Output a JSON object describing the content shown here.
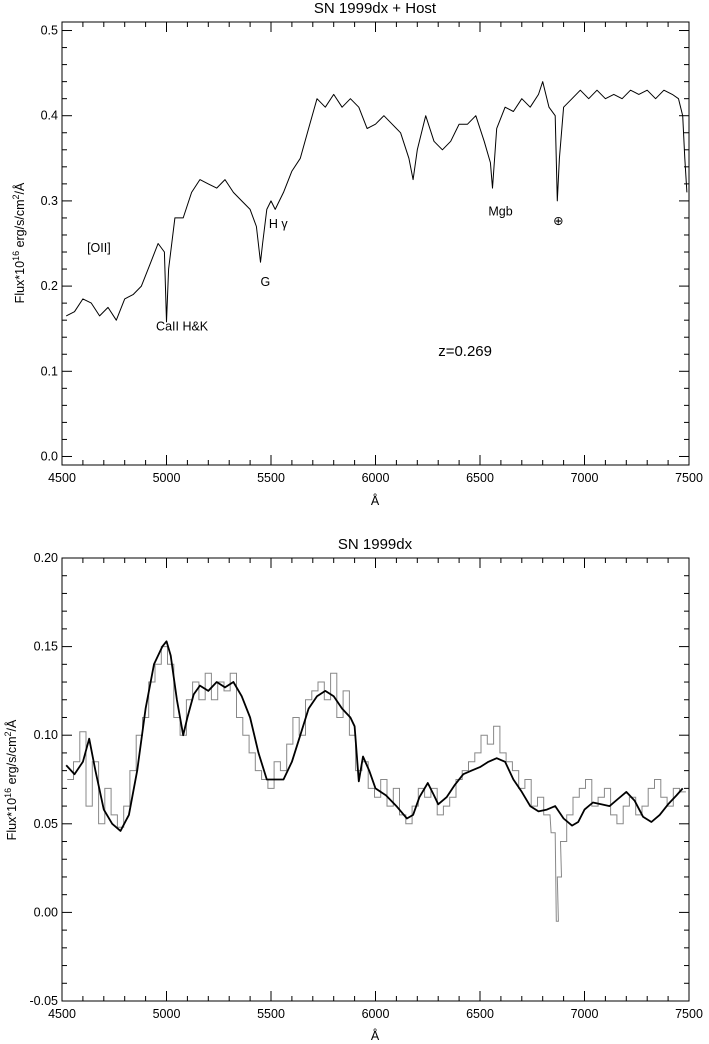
{
  "chart_data": [
    {
      "type": "line",
      "title": "SN 1999dx + Host",
      "xlabel": "Å",
      "ylabel": "Flux*10",
      "ylabel_sup": "16",
      "ylabel_tail": " erg/s/cm",
      "ylabel_sup2": "2",
      "ylabel_end": "/Å",
      "xlim": [
        4500,
        7500
      ],
      "ylim": [
        -0.01,
        0.51
      ],
      "xticks": [
        4500,
        5000,
        5500,
        6000,
        6500,
        7000,
        7500
      ],
      "xtick_labels": [
        "4500",
        "5000",
        "5500",
        "6000",
        "6500",
        "7000",
        "7500"
      ],
      "yticks": [
        0.0,
        0.1,
        0.2,
        0.3,
        0.4,
        0.5
      ],
      "ytick_labels": [
        "0.0",
        "0.1",
        "0.2",
        "0.3",
        "0.4",
        "0.5"
      ],
      "annotations": [
        {
          "text": "[OII]",
          "x": 4620,
          "y": 0.24
        },
        {
          "text": "CaII H&K",
          "x": 4950,
          "y": 0.148
        },
        {
          "text": "G",
          "x": 5450,
          "y": 0.2
        },
        {
          "text": "H γ",
          "x": 5490,
          "y": 0.268
        },
        {
          "text": "Mgb",
          "x": 6540,
          "y": 0.283
        },
        {
          "text": "⊕",
          "x": 6850,
          "y": 0.272
        },
        {
          "text": "z=0.269",
          "x": 6300,
          "y": 0.118
        }
      ],
      "series": [
        {
          "x": [
            4520,
            4560,
            4600,
            4640,
            4680,
            4720,
            4760,
            4800,
            4840,
            4880,
            4920,
            4960,
            4990,
            5000,
            5010,
            5040,
            5080,
            5120,
            5160,
            5200,
            5240,
            5280,
            5320,
            5360,
            5400,
            5430,
            5450,
            5460,
            5480,
            5500,
            5520,
            5560,
            5600,
            5640,
            5680,
            5720,
            5760,
            5800,
            5840,
            5880,
            5920,
            5960,
            6000,
            6040,
            6080,
            6120,
            6160,
            6180,
            6200,
            6240,
            6280,
            6320,
            6360,
            6400,
            6440,
            6480,
            6520,
            6550,
            6560,
            6580,
            6620,
            6660,
            6700,
            6740,
            6780,
            6800,
            6830,
            6860,
            6870,
            6880,
            6900,
            6940,
            6980,
            7020,
            7060,
            7100,
            7140,
            7180,
            7220,
            7260,
            7300,
            7340,
            7380,
            7420,
            7450,
            7470,
            7480,
            7490
          ],
          "y": [
            0.165,
            0.17,
            0.185,
            0.18,
            0.165,
            0.175,
            0.16,
            0.185,
            0.19,
            0.2,
            0.225,
            0.25,
            0.24,
            0.158,
            0.22,
            0.28,
            0.28,
            0.31,
            0.325,
            0.32,
            0.315,
            0.325,
            0.31,
            0.3,
            0.29,
            0.27,
            0.228,
            0.25,
            0.29,
            0.3,
            0.29,
            0.31,
            0.335,
            0.35,
            0.385,
            0.42,
            0.41,
            0.425,
            0.41,
            0.42,
            0.41,
            0.385,
            0.39,
            0.4,
            0.39,
            0.38,
            0.35,
            0.325,
            0.36,
            0.4,
            0.37,
            0.36,
            0.37,
            0.39,
            0.39,
            0.4,
            0.37,
            0.345,
            0.315,
            0.385,
            0.41,
            0.405,
            0.42,
            0.41,
            0.425,
            0.44,
            0.41,
            0.4,
            0.3,
            0.35,
            0.41,
            0.42,
            0.43,
            0.42,
            0.43,
            0.42,
            0.425,
            0.42,
            0.43,
            0.425,
            0.43,
            0.42,
            0.43,
            0.425,
            0.42,
            0.4,
            0.35,
            0.31
          ]
        }
      ]
    },
    {
      "type": "line",
      "title": "SN 1999dx",
      "xlabel": "Å",
      "ylabel": "Flux*10",
      "ylabel_sup": "16",
      "ylabel_tail": " erg/s/cm",
      "ylabel_sup2": "2",
      "ylabel_end": "/Å",
      "xlim": [
        4500,
        7500
      ],
      "ylim": [
        -0.05,
        0.2
      ],
      "xticks": [
        4500,
        5000,
        5500,
        6000,
        6500,
        7000,
        7500
      ],
      "xtick_labels": [
        "4500",
        "5000",
        "5500",
        "6000",
        "6500",
        "7000",
        "7500"
      ],
      "yticks": [
        -0.05,
        0.0,
        0.05,
        0.1,
        0.15,
        0.2
      ],
      "ytick_labels": [
        "-0.05",
        "0.00",
        "0.05",
        "0.10",
        "0.15",
        "0.20"
      ],
      "series": [
        {
          "style": "histogram",
          "color": "#888888",
          "x": [
            4540,
            4570,
            4600,
            4630,
            4660,
            4690,
            4720,
            4750,
            4780,
            4810,
            4840,
            4870,
            4900,
            4930,
            4960,
            4990,
            5020,
            5050,
            5080,
            5110,
            5140,
            5170,
            5200,
            5230,
            5260,
            5290,
            5320,
            5350,
            5380,
            5410,
            5440,
            5470,
            5500,
            5530,
            5560,
            5590,
            5620,
            5650,
            5680,
            5710,
            5740,
            5770,
            5800,
            5830,
            5860,
            5890,
            5920,
            5950,
            5980,
            6010,
            6040,
            6070,
            6100,
            6130,
            6160,
            6190,
            6220,
            6250,
            6280,
            6310,
            6340,
            6370,
            6400,
            6430,
            6460,
            6490,
            6520,
            6550,
            6580,
            6610,
            6640,
            6670,
            6700,
            6730,
            6760,
            6790,
            6820,
            6850,
            6870,
            6880,
            6900,
            6930,
            6960,
            6990,
            7020,
            7050,
            7080,
            7110,
            7140,
            7170,
            7200,
            7230,
            7260,
            7290,
            7320,
            7350,
            7380,
            7410,
            7440,
            7470
          ],
          "y": [
            0.075,
            0.085,
            0.102,
            0.06,
            0.085,
            0.05,
            0.07,
            0.055,
            0.048,
            0.06,
            0.08,
            0.1,
            0.11,
            0.13,
            0.14,
            0.15,
            0.14,
            0.11,
            0.1,
            0.12,
            0.13,
            0.12,
            0.135,
            0.12,
            0.13,
            0.125,
            0.135,
            0.11,
            0.1,
            0.09,
            0.08,
            0.075,
            0.07,
            0.085,
            0.08,
            0.095,
            0.11,
            0.1,
            0.12,
            0.125,
            0.13,
            0.12,
            0.135,
            0.11,
            0.125,
            0.1,
            0.08,
            0.085,
            0.07,
            0.065,
            0.075,
            0.06,
            0.07,
            0.055,
            0.05,
            0.06,
            0.07,
            0.065,
            0.07,
            0.055,
            0.06,
            0.065,
            0.075,
            0.08,
            0.085,
            0.09,
            0.1,
            0.095,
            0.105,
            0.09,
            0.085,
            0.08,
            0.07,
            0.075,
            0.06,
            0.065,
            0.055,
            0.045,
            -0.005,
            0.02,
            0.04,
            0.055,
            0.065,
            0.07,
            0.075,
            0.06,
            0.065,
            0.07,
            0.055,
            0.05,
            0.06,
            0.065,
            0.055,
            0.06,
            0.07,
            0.075,
            0.065,
            0.06,
            0.07,
            0.068
          ]
        },
        {
          "style": "line",
          "color": "#000000",
          "x": [
            4520,
            4560,
            4600,
            4630,
            4660,
            4700,
            4740,
            4780,
            4820,
            4860,
            4900,
            4940,
            4980,
            5000,
            5020,
            5050,
            5080,
            5100,
            5130,
            5160,
            5200,
            5240,
            5280,
            5320,
            5360,
            5400,
            5440,
            5480,
            5520,
            5560,
            5600,
            5640,
            5680,
            5720,
            5760,
            5800,
            5840,
            5880,
            5900,
            5920,
            5940,
            5970,
            6000,
            6050,
            6100,
            6150,
            6180,
            6210,
            6250,
            6280,
            6300,
            6340,
            6380,
            6420,
            6460,
            6500,
            6540,
            6580,
            6620,
            6660,
            6700,
            6740,
            6780,
            6820,
            6860,
            6900,
            6940,
            6970,
            7000,
            7040,
            7080,
            7120,
            7160,
            7200,
            7240,
            7280,
            7320,
            7360,
            7400,
            7440,
            7470
          ],
          "y": [
            0.083,
            0.078,
            0.085,
            0.098,
            0.08,
            0.058,
            0.05,
            0.046,
            0.055,
            0.08,
            0.115,
            0.14,
            0.15,
            0.153,
            0.145,
            0.12,
            0.1,
            0.11,
            0.123,
            0.128,
            0.125,
            0.13,
            0.127,
            0.13,
            0.122,
            0.11,
            0.09,
            0.075,
            0.075,
            0.075,
            0.085,
            0.1,
            0.115,
            0.122,
            0.125,
            0.122,
            0.115,
            0.11,
            0.105,
            0.074,
            0.088,
            0.08,
            0.07,
            0.066,
            0.06,
            0.053,
            0.055,
            0.065,
            0.073,
            0.066,
            0.061,
            0.065,
            0.072,
            0.078,
            0.08,
            0.082,
            0.085,
            0.087,
            0.085,
            0.075,
            0.068,
            0.06,
            0.057,
            0.058,
            0.06,
            0.053,
            0.049,
            0.051,
            0.058,
            0.062,
            0.061,
            0.06,
            0.064,
            0.068,
            0.063,
            0.054,
            0.051,
            0.055,
            0.061,
            0.066,
            0.07
          ]
        }
      ]
    }
  ]
}
